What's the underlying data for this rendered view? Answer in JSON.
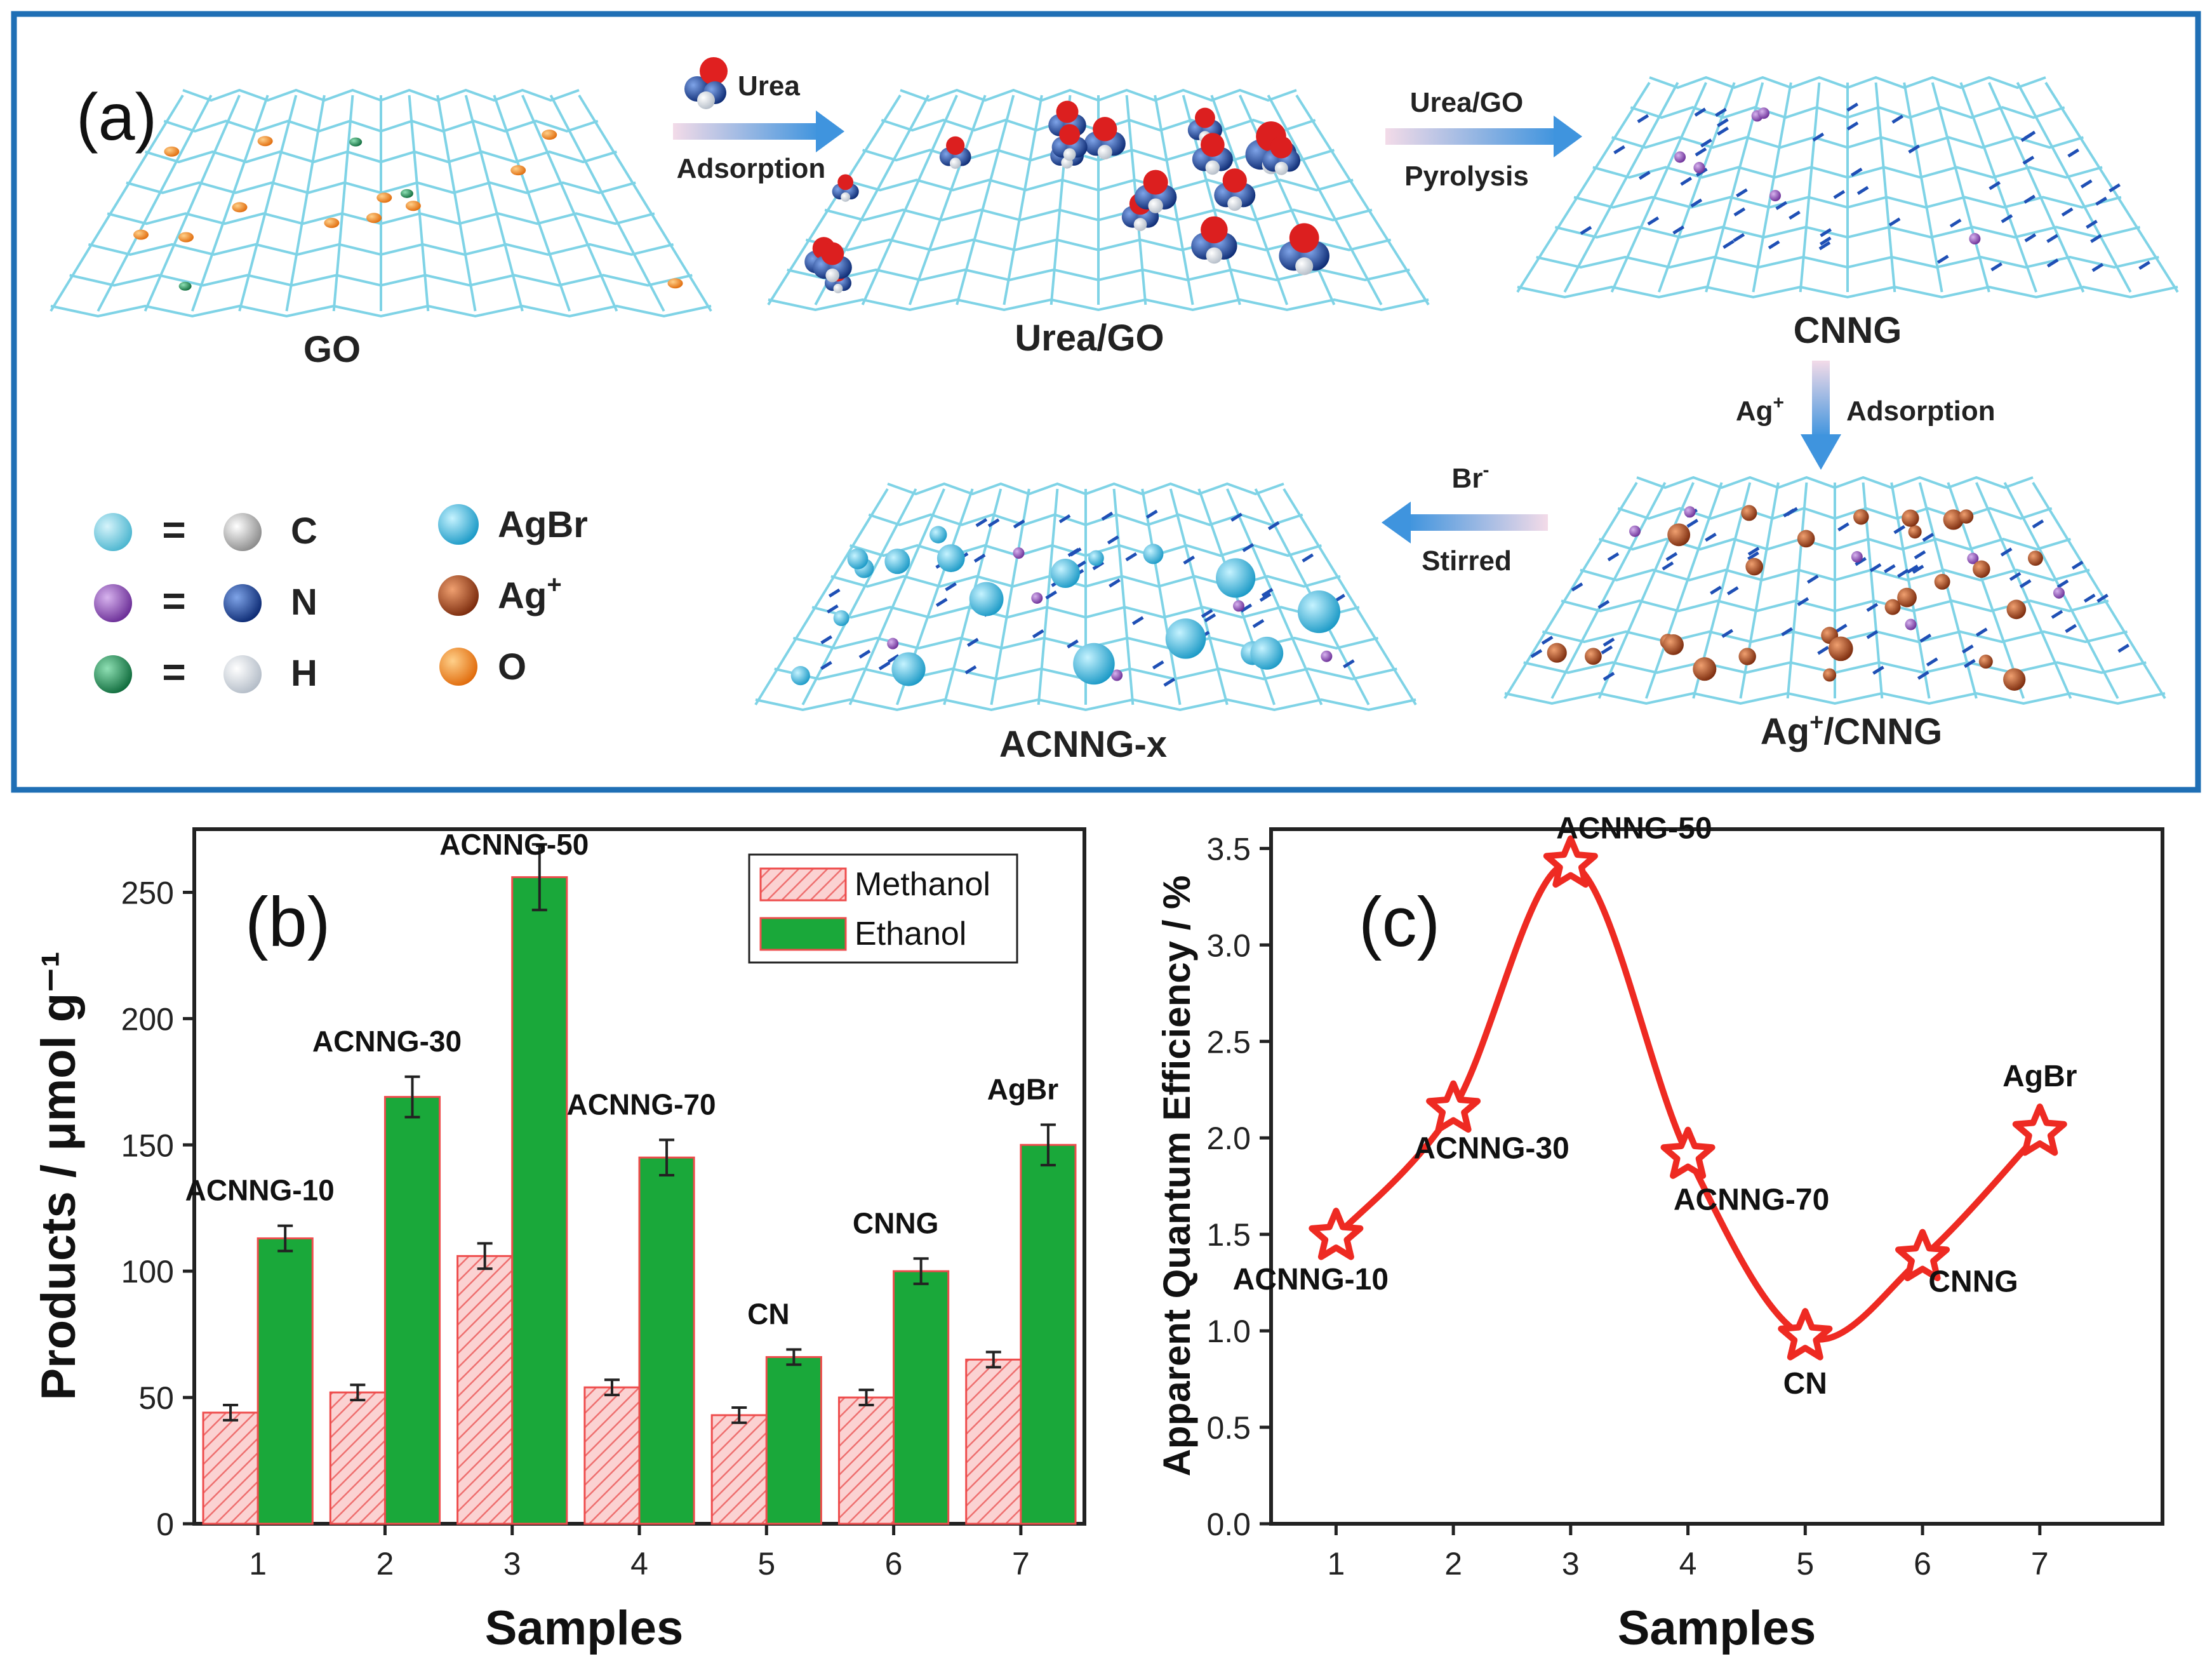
{
  "panel_a": {
    "label": "(a)",
    "stages": {
      "go": "GO",
      "urea_go": "Urea/GO",
      "cnng": "CNNG",
      "ag_cnng_pre": "Ag",
      "ag_cnng_sup": "+",
      "ag_cnng_post": "/CNNG",
      "acnng": "ACNNG-x"
    },
    "arrows": {
      "urea": "Urea",
      "adsorption": "Adsorption",
      "urea_go": "Urea/GO",
      "pyrolysis": "Pyrolysis",
      "ag": "Ag",
      "ag_sup": "+",
      "ag_adsorption": "Adsorption",
      "br": "Br",
      "br_sup": "-",
      "stirred": "Stirred"
    },
    "legend": {
      "eq": "=",
      "c": "C",
      "n": "N",
      "h": "H",
      "agbr": "AgBr",
      "ag": "Ag",
      "ag_sup": "+",
      "o": "O"
    },
    "colors": {
      "frame": "#1f6fb5",
      "lattice": "#7fd3e6",
      "arrow": "#4a9fe0"
    }
  },
  "chart_data": [
    {
      "type": "bar",
      "panel_label": "(b)",
      "title": "",
      "xlabel": "Samples",
      "ylabel": "Products / μmol g⁻¹",
      "categories": [
        "1",
        "2",
        "3",
        "4",
        "5",
        "6",
        "7"
      ],
      "series": [
        {
          "name": "Methanol",
          "color": "#f6b3b3",
          "values": [
            44,
            52,
            106,
            54,
            43,
            50,
            65
          ],
          "errors": [
            3,
            3,
            5,
            3,
            3,
            3,
            3
          ]
        },
        {
          "name": "Ethanol",
          "color": "#1aa83a",
          "values": [
            113,
            169,
            256,
            145,
            66,
            100,
            150
          ],
          "errors": [
            5,
            8,
            13,
            7,
            3,
            5,
            8
          ]
        }
      ],
      "annotations": [
        "ACNNG-10",
        "ACNNG-30",
        "ACNNG-50",
        "ACNNG-70",
        "CN",
        "CNNG",
        "AgBr"
      ],
      "yticks": [
        "0",
        "50",
        "100",
        "150",
        "200",
        "250"
      ],
      "ylim": [
        0,
        275
      ],
      "legend": "top-right"
    },
    {
      "type": "line",
      "panel_label": "(c)",
      "title": "",
      "xlabel": "Samples",
      "ylabel": "Apparent Quantum Efficiency / %",
      "x": [
        1,
        2,
        3,
        4,
        5,
        6,
        7
      ],
      "xticks": [
        "1",
        "2",
        "3",
        "4",
        "5",
        "6",
        "7"
      ],
      "y": [
        1.49,
        2.15,
        3.42,
        1.91,
        0.97,
        1.38,
        2.03
      ],
      "point_labels": [
        "ACNNG-10",
        "ACNNG-30",
        "ACNNG-50",
        "ACNNG-70",
        "CN",
        "CNNG",
        "AgBr"
      ],
      "yticks": [
        "0.0",
        "0.5",
        "1.0",
        "1.5",
        "2.0",
        "2.5",
        "3.0",
        "3.5"
      ],
      "ylim": [
        0,
        3.6
      ],
      "marker": "star",
      "color": "#ee2a22"
    }
  ]
}
